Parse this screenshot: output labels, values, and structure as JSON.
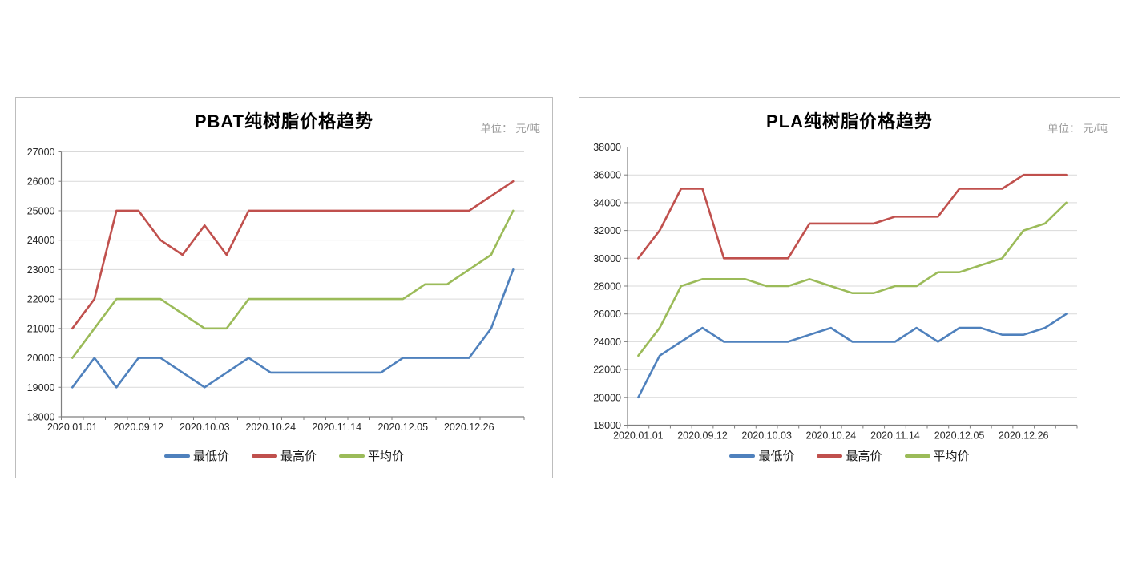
{
  "page": {
    "background_color": "#ffffff",
    "panel_border_color": "#bdbdbd",
    "grid_color": "#d9d9d9",
    "axis_color": "#7f7f7f",
    "title_color": "#000000",
    "unit_text_color": "#9b9b9b"
  },
  "chart_data": [
    {
      "type": "line",
      "title": "PBAT纯树脂价格趋势",
      "unit_label": "单位： 元/吨",
      "x_tick_labels": [
        "2020.01.01",
        "2020.09.12",
        "2020.10.03",
        "2020.10.24",
        "2020.11.14",
        "2020.12.05",
        "2020.12.26"
      ],
      "label_every_n_points": 3,
      "n_points": 21,
      "ylim": [
        18000,
        27000
      ],
      "y_tick_step": 1000,
      "grid": true,
      "legend_position": "bottom",
      "series": [
        {
          "name": "最低价",
          "color": "#4f81bd",
          "values": [
            19000,
            20000,
            19000,
            20000,
            20000,
            19500,
            19000,
            19500,
            20000,
            19500,
            19500,
            19500,
            19500,
            19500,
            19500,
            20000,
            20000,
            20000,
            20000,
            21000,
            23000
          ]
        },
        {
          "name": "最高价",
          "color": "#c0504d",
          "values": [
            21000,
            22000,
            25000,
            25000,
            24000,
            23500,
            24500,
            23500,
            25000,
            25000,
            25000,
            25000,
            25000,
            25000,
            25000,
            25000,
            25000,
            25000,
            25000,
            25500,
            26000
          ]
        },
        {
          "name": "平均价",
          "color": "#9bbb59",
          "values": [
            20000,
            21000,
            22000,
            22000,
            22000,
            21500,
            21000,
            21000,
            22000,
            22000,
            22000,
            22000,
            22000,
            22000,
            22000,
            22000,
            22500,
            22500,
            23000,
            23500,
            25000
          ]
        }
      ]
    },
    {
      "type": "line",
      "title": "PLA纯树脂价格趋势",
      "unit_label": "单位： 元/吨",
      "x_tick_labels": [
        "2020.01.01",
        "2020.09.12",
        "2020.10.03",
        "2020.10.24",
        "2020.11.14",
        "2020.12.05",
        "2020.12.26"
      ],
      "label_every_n_points": 3,
      "n_points": 21,
      "ylim": [
        18000,
        38000
      ],
      "y_tick_step": 2000,
      "grid": true,
      "legend_position": "bottom",
      "series": [
        {
          "name": "最低价",
          "color": "#4f81bd",
          "values": [
            20000,
            23000,
            24000,
            25000,
            24000,
            24000,
            24000,
            24000,
            24500,
            25000,
            24000,
            24000,
            24000,
            25000,
            24000,
            25000,
            25000,
            24500,
            24500,
            25000,
            26000
          ]
        },
        {
          "name": "最高价",
          "color": "#c0504d",
          "values": [
            30000,
            32000,
            35000,
            35000,
            30000,
            30000,
            30000,
            30000,
            32500,
            32500,
            32500,
            32500,
            33000,
            33000,
            33000,
            35000,
            35000,
            35000,
            36000,
            36000,
            36000
          ]
        },
        {
          "name": "平均价",
          "color": "#9bbb59",
          "values": [
            23000,
            25000,
            28000,
            28500,
            28500,
            28500,
            28000,
            28000,
            28500,
            28000,
            27500,
            27500,
            28000,
            28000,
            29000,
            29000,
            29500,
            30000,
            32000,
            32500,
            34000
          ]
        }
      ]
    }
  ]
}
